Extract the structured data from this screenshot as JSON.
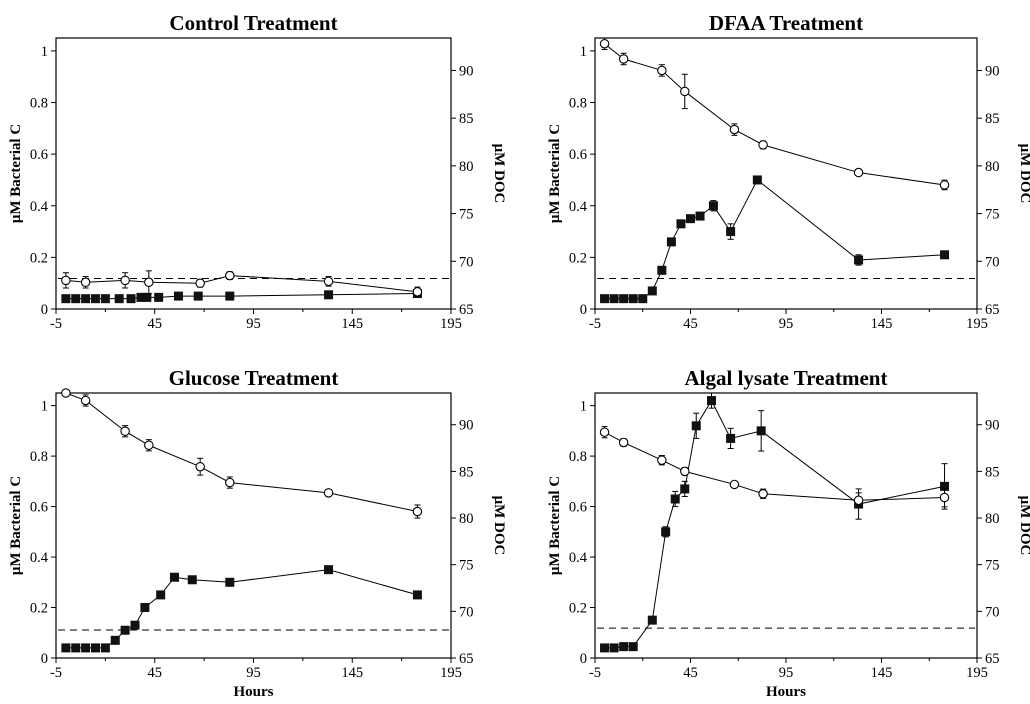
{
  "chart_data": [
    {
      "type": "line",
      "title": "Control Treatment",
      "xlabel": "",
      "ylabel_left": "μM Bacterial C",
      "ylabel_right": "μM DOC",
      "xlim": [
        -5,
        195
      ],
      "ylim_left": [
        0,
        1.05
      ],
      "ylim_right": [
        65,
        93.4
      ],
      "x_ticks": [
        "-5",
        "45",
        "95",
        "145",
        "195"
      ],
      "y_ticks_left": [
        "0",
        "0.2",
        "0.4",
        "0.6",
        "0.8",
        "1"
      ],
      "y_ticks_right": [
        "65",
        "70",
        "75",
        "80",
        "85",
        "90"
      ],
      "grid": false,
      "reference_line": {
        "axis": "right",
        "value": 68.2,
        "style": "dashed"
      },
      "series": [
        {
          "axis": "left",
          "marker": "filled-square",
          "x": [
            0,
            5,
            10,
            15,
            20,
            27,
            33,
            38,
            41,
            47,
            57,
            67,
            83,
            133,
            178
          ],
          "y": [
            0.04,
            0.04,
            0.04,
            0.04,
            0.04,
            0.04,
            0.04,
            0.045,
            0.045,
            0.045,
            0.05,
            0.05,
            0.05,
            0.055,
            0.06
          ]
        },
        {
          "axis": "right",
          "marker": "open-circle",
          "x": [
            0,
            10,
            30,
            42,
            68,
            83,
            133,
            178
          ],
          "y": [
            68.0,
            67.8,
            68.0,
            67.8,
            67.7,
            68.5,
            67.9,
            66.8
          ],
          "err": [
            0.8,
            0.6,
            0.8,
            1.2,
            0.4,
            0.4,
            0.5,
            0.5
          ]
        }
      ]
    },
    {
      "type": "line",
      "title": "DFAA Treatment",
      "xlabel": "",
      "ylabel_left": "μM Bacterial C",
      "ylabel_right": "μM DOC",
      "xlim": [
        -5,
        195
      ],
      "ylim_left": [
        0,
        1.05
      ],
      "ylim_right": [
        65,
        93.4
      ],
      "x_ticks": [
        "-5",
        "45",
        "95",
        "145",
        "195"
      ],
      "y_ticks_left": [
        "0",
        "0.2",
        "0.4",
        "0.6",
        "0.8",
        "1"
      ],
      "y_ticks_right": [
        "65",
        "70",
        "75",
        "80",
        "85",
        "90"
      ],
      "grid": false,
      "reference_line": {
        "axis": "right",
        "value": 68.2,
        "style": "dashed"
      },
      "series": [
        {
          "axis": "left",
          "marker": "filled-square",
          "x": [
            0,
            5,
            10,
            15,
            20,
            25,
            30,
            35,
            40,
            45,
            50,
            57,
            66,
            80,
            133,
            178
          ],
          "y": [
            0.04,
            0.04,
            0.04,
            0.04,
            0.04,
            0.07,
            0.15,
            0.26,
            0.33,
            0.35,
            0.36,
            0.4,
            0.3,
            0.5,
            0.19,
            0.21
          ],
          "err": [
            0,
            0,
            0,
            0,
            0,
            0.01,
            0.01,
            0.01,
            0.01,
            0.01,
            0.01,
            0.02,
            0.03,
            0.01,
            0.02,
            0.01
          ]
        },
        {
          "axis": "right",
          "marker": "open-circle",
          "x": [
            0,
            10,
            30,
            42,
            68,
            83,
            133,
            178
          ],
          "y": [
            92.8,
            91.2,
            90.0,
            87.8,
            83.8,
            82.2,
            79.3,
            78.0
          ],
          "err": [
            0.6,
            0.6,
            0.6,
            1.8,
            0.6,
            0.4,
            0.3,
            0.5
          ]
        }
      ]
    },
    {
      "type": "line",
      "title": "Glucose Treatment",
      "xlabel": "Hours",
      "ylabel_left": "μM Bacterial C",
      "ylabel_right": "μM DOC",
      "xlim": [
        -5,
        195
      ],
      "ylim_left": [
        0,
        1.05
      ],
      "ylim_right": [
        65,
        93.4
      ],
      "x_ticks": [
        "-5",
        "45",
        "95",
        "145",
        "195"
      ],
      "y_ticks_left": [
        "0",
        "0.2",
        "0.4",
        "0.6",
        "0.8",
        "1"
      ],
      "y_ticks_right": [
        "65",
        "70",
        "75",
        "80",
        "85",
        "90"
      ],
      "grid": false,
      "reference_line": {
        "axis": "right",
        "value": 68.0,
        "style": "dashed"
      },
      "series": [
        {
          "axis": "left",
          "marker": "filled-square",
          "x": [
            0,
            5,
            10,
            15,
            20,
            25,
            30,
            35,
            40,
            48,
            55,
            64,
            83,
            133,
            178
          ],
          "y": [
            0.04,
            0.04,
            0.04,
            0.04,
            0.04,
            0.07,
            0.11,
            0.13,
            0.2,
            0.25,
            0.32,
            0.31,
            0.3,
            0.35,
            0.25
          ],
          "err": [
            0,
            0,
            0,
            0,
            0,
            0,
            0,
            0.01,
            0.01,
            0.01,
            0.01,
            0.01,
            0.01,
            0.01,
            0.01
          ]
        },
        {
          "axis": "right",
          "marker": "open-circle",
          "x": [
            0,
            10,
            30,
            42,
            68,
            83,
            133,
            178
          ],
          "y": [
            93.4,
            92.6,
            89.3,
            87.8,
            85.5,
            83.8,
            82.7,
            80.7
          ],
          "err": [
            0.2,
            0.6,
            0.6,
            0.6,
            0.9,
            0.6,
            0.2,
            0.7
          ]
        }
      ]
    },
    {
      "type": "line",
      "title": "Algal  lysate  Treatment",
      "xlabel": "Hours",
      "ylabel_left": "μM Bacterial C",
      "ylabel_right": "μM DOC",
      "xlim": [
        -5,
        195
      ],
      "ylim_left": [
        0,
        1.05
      ],
      "ylim_right": [
        65,
        93.4
      ],
      "x_ticks": [
        "-5",
        "45",
        "95",
        "145",
        "195"
      ],
      "y_ticks_left": [
        "0",
        "0.2",
        "0.4",
        "0.6",
        "0.8",
        "1"
      ],
      "y_ticks_right": [
        "65",
        "70",
        "75",
        "80",
        "85",
        "90"
      ],
      "grid": false,
      "reference_line": {
        "axis": "right",
        "value": 68.2,
        "style": "dashed"
      },
      "series": [
        {
          "axis": "left",
          "marker": "filled-square",
          "x": [
            0,
            5,
            10,
            15,
            25,
            32,
            37,
            42,
            48,
            56,
            66,
            82,
            133,
            178
          ],
          "y": [
            0.04,
            0.04,
            0.045,
            0.045,
            0.15,
            0.5,
            0.63,
            0.67,
            0.92,
            1.02,
            0.87,
            0.9,
            0.61,
            0.68
          ],
          "err": [
            0,
            0,
            0,
            0,
            0.01,
            0.02,
            0.03,
            0.03,
            0.05,
            0.03,
            0.04,
            0.08,
            0.06,
            0.09
          ]
        },
        {
          "axis": "right",
          "marker": "open-circle",
          "x": [
            0,
            10,
            30,
            42,
            68,
            83,
            133,
            178
          ],
          "y": [
            89.2,
            88.1,
            86.2,
            85.0,
            83.6,
            82.6,
            81.9,
            82.2
          ],
          "err": [
            0.6,
            0.4,
            0.5,
            0.4,
            0.3,
            0.5,
            0.8,
            1.0
          ]
        }
      ]
    }
  ]
}
